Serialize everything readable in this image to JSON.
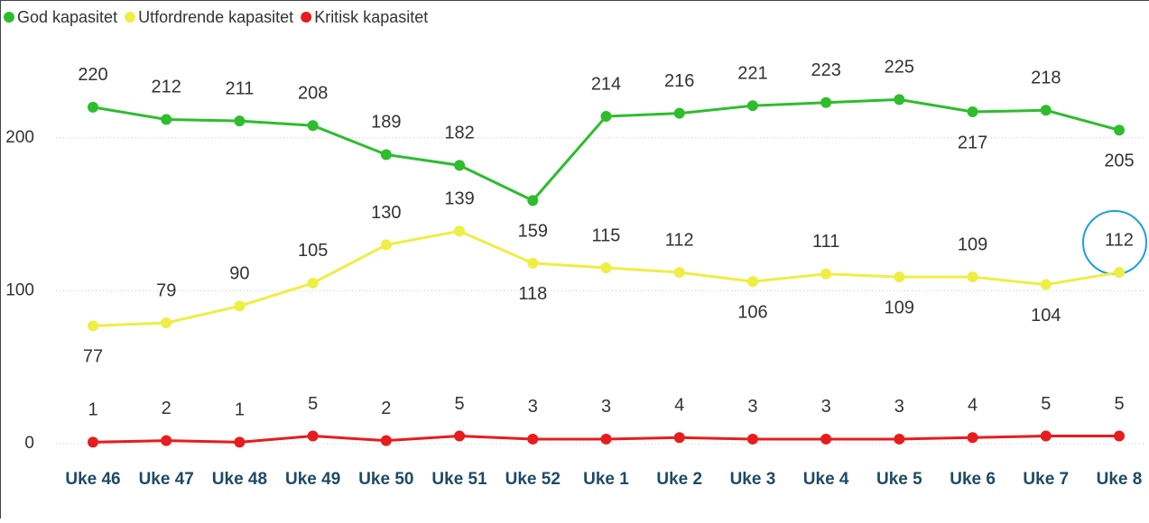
{
  "chart_data": {
    "type": "line",
    "categories": [
      "Uke 46",
      "Uke 47",
      "Uke 48",
      "Uke 49",
      "Uke 50",
      "Uke 51",
      "Uke 52",
      "Uke 1",
      "Uke 2",
      "Uke 3",
      "Uke 4",
      "Uke 5",
      "Uke 6",
      "Uke 7",
      "Uke 8"
    ],
    "series": [
      {
        "name": "God kapasitet",
        "color": "#2dbd2d",
        "values": [
          220,
          212,
          211,
          208,
          189,
          182,
          159,
          214,
          216,
          221,
          223,
          225,
          217,
          218,
          205
        ]
      },
      {
        "name": "Utfordrende kapasitet",
        "color": "#eeee44",
        "values": [
          77,
          79,
          90,
          105,
          130,
          139,
          118,
          115,
          112,
          106,
          111,
          109,
          109,
          104,
          112
        ]
      },
      {
        "name": "Kritisk kapasitet",
        "color": "#e81c1c",
        "values": [
          1,
          2,
          1,
          5,
          2,
          5,
          3,
          3,
          4,
          3,
          3,
          3,
          4,
          5,
          5
        ]
      }
    ],
    "ylim": [
      -8,
      250
    ],
    "yticks": [
      0,
      100,
      200
    ],
    "grid": true,
    "legend": "top-left"
  }
}
